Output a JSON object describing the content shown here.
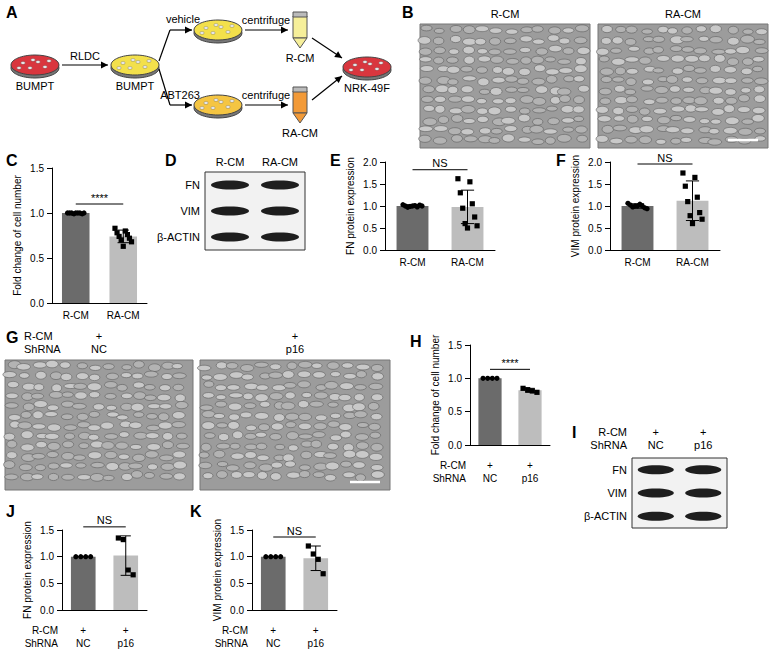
{
  "diagram": {
    "panel": "A",
    "start": "BUMPT",
    "treatment": "RLDC",
    "treated": "BUMPT",
    "branches": [
      {
        "label": "vehicle",
        "step": "centrifuge",
        "product": "R-CM"
      },
      {
        "label": "ABT263",
        "step": "centrifuge",
        "product": "RA-CM"
      }
    ],
    "target": "NRK-49F"
  },
  "micrographs": [
    {
      "panel": "B",
      "labels": [
        "R-CM",
        "RA-CM"
      ]
    },
    {
      "panel": "G",
      "rows": [
        {
          "label": "R-CM",
          "values": [
            "+",
            "+"
          ]
        },
        {
          "label": "ShRNA",
          "values": [
            "NC",
            "p16"
          ]
        }
      ]
    }
  ],
  "blots": [
    {
      "panel": "D",
      "lanes": [
        "R-CM",
        "RA-CM"
      ],
      "bands": [
        "FN",
        "VIM",
        "β-ACTIN"
      ]
    },
    {
      "panel": "I",
      "rows": [
        {
          "label": "R-CM",
          "values": [
            "+",
            "+"
          ]
        },
        {
          "label": "ShRNA",
          "values": [
            "NC",
            "p16"
          ]
        }
      ],
      "bands": [
        "FN",
        "VIM",
        "β-ACTIN"
      ]
    }
  ],
  "chart_data": [
    {
      "panel": "C",
      "type": "bar",
      "ylabel": "Fold change of cell number",
      "categories": [
        "R-CM",
        "RA-CM"
      ],
      "values": [
        1.0,
        0.74
      ],
      "errors": [
        0,
        0.07
      ],
      "points": [
        [
          1,
          1,
          1,
          1,
          1,
          1,
          1,
          1,
          1
        ],
        [
          0.83,
          0.8,
          0.78,
          0.76,
          0.74,
          0.72,
          0.7,
          0.68,
          0.63
        ]
      ],
      "colors": [
        "#6b6b6b",
        "#bdbdbd"
      ],
      "ylim": [
        0,
        1.5
      ],
      "yticks": [
        {
          "value": 0,
          "label": "0.0"
        },
        0.5,
        {
          "value": 1,
          "label": "1.0"
        },
        1.5
      ],
      "annotation": "****"
    },
    {
      "panel": "E",
      "type": "bar",
      "ylabel": "FN protein expression",
      "categories": [
        "R-CM",
        "RA-CM"
      ],
      "values": [
        1.0,
        0.98
      ],
      "errors": [
        0.03,
        0.38
      ],
      "points": [
        [
          1.03,
          1.01,
          1.0,
          0.98,
          0.97,
          1.02,
          0.99,
          1.0,
          1.0
        ],
        [
          1.62,
          1.55,
          1.3,
          1.05,
          0.95,
          0.75,
          0.6,
          0.55,
          0.5
        ]
      ],
      "colors": [
        "#6b6b6b",
        "#bdbdbd"
      ],
      "ylim": [
        0,
        2.0
      ],
      "yticks": [
        {
          "value": 0,
          "label": "0.0"
        },
        0.5,
        {
          "value": 1,
          "label": "1.0"
        },
        1.5,
        {
          "value": 2,
          "label": "2.0"
        }
      ],
      "annotation": "NS"
    },
    {
      "panel": "F",
      "type": "bar",
      "ylabel": "VIM protein expression",
      "categories": [
        "R-CM",
        "RA-CM"
      ],
      "values": [
        1.0,
        1.12
      ],
      "errors": [
        0.05,
        0.45
      ],
      "points": [
        [
          1.06,
          1.04,
          1.02,
          1.0,
          0.98,
          0.96,
          1.0,
          0.94,
          1.0
        ],
        [
          1.75,
          1.65,
          1.45,
          1.2,
          1.1,
          0.85,
          0.78,
          0.7,
          0.6
        ]
      ],
      "colors": [
        "#6b6b6b",
        "#bdbdbd"
      ],
      "ylim": [
        0,
        2.0
      ],
      "yticks": [
        {
          "value": 0,
          "label": "0.0"
        },
        0.5,
        {
          "value": 1,
          "label": "1.0"
        },
        1.5,
        {
          "value": 2,
          "label": "2.0"
        }
      ],
      "annotation": "NS"
    },
    {
      "panel": "H",
      "type": "bar",
      "ylabel": "Fold change of cell number",
      "categories": [
        "NC",
        "p16"
      ],
      "category_rows": [
        {
          "label": "R-CM",
          "values": [
            "+",
            "+"
          ]
        }
      ],
      "category_label": "ShRNA",
      "values": [
        1.0,
        0.82
      ],
      "errors": [
        0,
        0.03
      ],
      "points": [
        [
          1,
          1,
          1,
          1
        ],
        [
          0.85,
          0.83,
          0.81,
          0.79
        ]
      ],
      "colors": [
        "#6b6b6b",
        "#bdbdbd"
      ],
      "ylim": [
        0,
        1.5
      ],
      "yticks": [
        {
          "value": 0,
          "label": "0.0"
        },
        0.5,
        {
          "value": 1,
          "label": "1.0"
        },
        1.5
      ],
      "annotation": "****"
    },
    {
      "panel": "J",
      "type": "bar",
      "ylabel": "FN protein expression",
      "categories": [
        "NC",
        "p16"
      ],
      "category_rows": [
        {
          "label": "R-CM",
          "values": [
            "+",
            "+"
          ]
        }
      ],
      "category_label": "ShRNA",
      "values": [
        1.0,
        1.02
      ],
      "errors": [
        0,
        0.37
      ],
      "points": [
        [
          1,
          1,
          1,
          1
        ],
        [
          1.35,
          1.32,
          0.75,
          0.66
        ]
      ],
      "colors": [
        "#6b6b6b",
        "#bdbdbd"
      ],
      "ylim": [
        0,
        1.5
      ],
      "yticks": [
        {
          "value": 0,
          "label": "0.0"
        },
        0.5,
        {
          "value": 1,
          "label": "1.0"
        },
        1.5
      ],
      "annotation": "NS"
    },
    {
      "panel": "K",
      "type": "bar",
      "ylabel": "VIM protein expression",
      "categories": [
        "NC",
        "p16"
      ],
      "category_rows": [
        {
          "label": "R-CM",
          "values": [
            "+",
            "+"
          ]
        }
      ],
      "category_label": "ShRNA",
      "values": [
        1.0,
        0.97
      ],
      "errors": [
        0,
        0.23
      ],
      "points": [
        [
          1,
          1,
          1,
          1
        ],
        [
          1.2,
          1.05,
          0.95,
          0.68
        ]
      ],
      "colors": [
        "#6b6b6b",
        "#bdbdbd"
      ],
      "ylim": [
        0,
        1.5
      ],
      "yticks": [
        {
          "value": 0,
          "label": "0.0"
        },
        0.5,
        {
          "value": 1,
          "label": "1.0"
        },
        1.5
      ],
      "annotation": "NS"
    }
  ]
}
